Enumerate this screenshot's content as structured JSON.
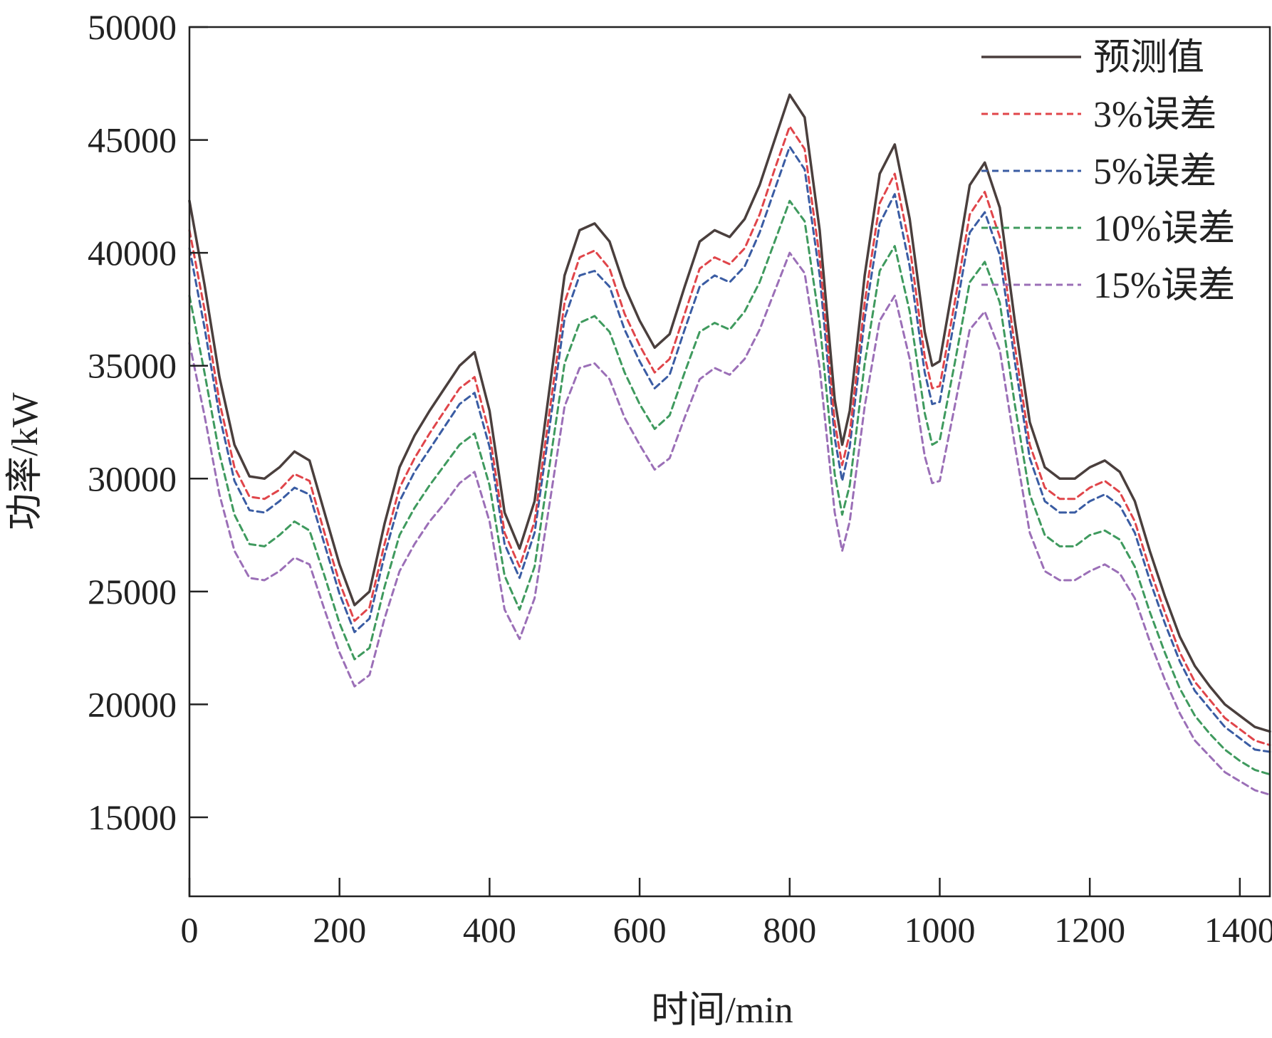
{
  "chart_data": {
    "type": "line",
    "title": "",
    "xlabel": "时间/min",
    "ylabel": "功率/kW",
    "xlim": [
      0,
      1440
    ],
    "ylim": [
      11500,
      50000
    ],
    "xticks": [
      0,
      200,
      400,
      600,
      800,
      1000,
      1200,
      1400
    ],
    "yticks": [
      15000,
      20000,
      25000,
      30000,
      35000,
      40000,
      45000,
      50000
    ],
    "grid": false,
    "legend_position": "top-right",
    "x": [
      0,
      20,
      40,
      60,
      80,
      100,
      120,
      140,
      160,
      180,
      200,
      220,
      240,
      260,
      280,
      300,
      320,
      340,
      360,
      380,
      400,
      420,
      440,
      460,
      480,
      500,
      520,
      540,
      560,
      580,
      600,
      620,
      640,
      660,
      680,
      700,
      720,
      740,
      760,
      780,
      800,
      820,
      840,
      860,
      870,
      880,
      900,
      920,
      940,
      960,
      980,
      990,
      1000,
      1020,
      1040,
      1060,
      1080,
      1100,
      1120,
      1140,
      1160,
      1180,
      1200,
      1220,
      1240,
      1260,
      1280,
      1300,
      1320,
      1340,
      1360,
      1380,
      1400,
      1420,
      1440
    ],
    "series": [
      {
        "name": "预测值",
        "color": "#4a3f3d",
        "dash": "solid",
        "values": [
          42300,
          38600,
          34500,
          31500,
          30100,
          30000,
          30500,
          31200,
          30800,
          28500,
          26200,
          24400,
          25000,
          28000,
          30500,
          31900,
          33000,
          34000,
          35000,
          35600,
          33000,
          28500,
          26900,
          29000,
          34000,
          39000,
          41000,
          41300,
          40500,
          38500,
          37000,
          35800,
          36400,
          38500,
          40500,
          41000,
          40700,
          41500,
          43000,
          45000,
          47000,
          46000,
          41000,
          33500,
          31500,
          33000,
          39000,
          43500,
          44800,
          41500,
          36500,
          35000,
          35200,
          39000,
          43000,
          44000,
          42000,
          37000,
          32500,
          30500,
          30000,
          30000,
          30500,
          30800,
          30300,
          29000,
          26800,
          24800,
          23000,
          21700,
          20800,
          20000,
          19500,
          19000,
          18800
        ]
      },
      {
        "name": "3%误差",
        "color": "#e0454a",
        "dash": "dashed",
        "values": [
          41000,
          37500,
          33400,
          30500,
          29200,
          29100,
          29500,
          30200,
          29900,
          27600,
          25400,
          23700,
          24300,
          27100,
          29600,
          30900,
          32000,
          33000,
          34000,
          34500,
          32000,
          27600,
          26100,
          28100,
          33000,
          37800,
          39800,
          40100,
          39300,
          37300,
          35900,
          34700,
          35300,
          37300,
          39300,
          39800,
          39500,
          40200,
          41700,
          43700,
          45600,
          44600,
          39800,
          32500,
          30600,
          32000,
          37800,
          42200,
          43500,
          40300,
          35400,
          34000,
          34100,
          37800,
          41700,
          42700,
          40700,
          35900,
          31500,
          29600,
          29100,
          29100,
          29600,
          29900,
          29400,
          28100,
          26000,
          24100,
          22300,
          21000,
          20200,
          19400,
          18900,
          18400,
          18200
        ]
      },
      {
        "name": "5%误差",
        "color": "#3a5ca3",
        "dash": "dashed",
        "values": [
          40200,
          36700,
          32800,
          29900,
          28600,
          28500,
          29000,
          29600,
          29300,
          27100,
          24900,
          23200,
          23800,
          26600,
          29000,
          30300,
          31300,
          32300,
          33300,
          33800,
          31400,
          27100,
          25600,
          27600,
          32300,
          37100,
          39000,
          39200,
          38500,
          36600,
          35200,
          34000,
          34600,
          36600,
          38500,
          39000,
          38700,
          39400,
          40900,
          42800,
          44700,
          43700,
          39000,
          31800,
          29900,
          31400,
          37100,
          41300,
          42600,
          39400,
          34700,
          33300,
          33400,
          37100,
          40900,
          41800,
          39900,
          35200,
          30900,
          29000,
          28500,
          28500,
          29000,
          29300,
          28800,
          27600,
          25500,
          23600,
          21900,
          20600,
          19800,
          19000,
          18500,
          18000,
          17900
        ]
      },
      {
        "name": "10%误差",
        "color": "#3f9a5e",
        "dash": "dashed",
        "values": [
          38100,
          34700,
          31100,
          28400,
          27100,
          27000,
          27500,
          28100,
          27700,
          25700,
          23600,
          22000,
          22500,
          25200,
          27500,
          28700,
          29700,
          30600,
          31500,
          32000,
          29700,
          25700,
          24200,
          26100,
          30600,
          35100,
          36900,
          37200,
          36500,
          34700,
          33300,
          32200,
          32800,
          34700,
          36500,
          36900,
          36600,
          37400,
          38700,
          40500,
          42300,
          41400,
          36900,
          30200,
          28400,
          29700,
          35100,
          39200,
          40300,
          37400,
          32900,
          31500,
          31700,
          35100,
          38700,
          39600,
          37800,
          33300,
          29300,
          27500,
          27000,
          27000,
          27500,
          27700,
          27300,
          26100,
          24100,
          22300,
          20700,
          19500,
          18700,
          18000,
          17500,
          17100,
          16900
        ]
      },
      {
        "name": "15%误差",
        "color": "#9b6fb7",
        "dash": "dashed",
        "values": [
          36000,
          32800,
          29300,
          26800,
          25600,
          25500,
          25900,
          26500,
          26200,
          24200,
          22300,
          20800,
          21300,
          23800,
          25900,
          27100,
          28100,
          28900,
          29800,
          30300,
          28100,
          24200,
          22900,
          24700,
          28900,
          33200,
          34900,
          35100,
          34400,
          32700,
          31500,
          30400,
          30900,
          32700,
          34400,
          34900,
          34600,
          35300,
          36600,
          38300,
          40000,
          39100,
          34900,
          28500,
          26800,
          28100,
          33200,
          37000,
          38100,
          35300,
          31000,
          29800,
          29900,
          33200,
          36600,
          37400,
          35700,
          31500,
          27600,
          25900,
          25500,
          25500,
          25900,
          26200,
          25800,
          24700,
          22800,
          21100,
          19600,
          18400,
          17700,
          17000,
          16600,
          16200,
          16000
        ]
      }
    ]
  }
}
